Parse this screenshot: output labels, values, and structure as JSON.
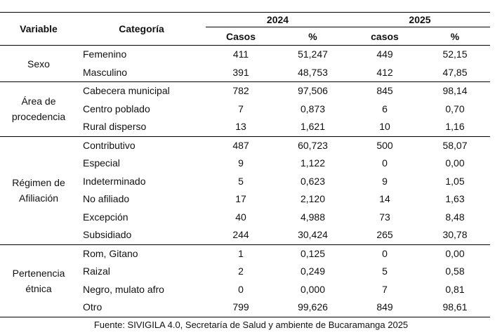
{
  "header": {
    "variable": "Variable",
    "categoria": "Categoría",
    "year1": "2024",
    "year2": "2025",
    "casos1": "Casos",
    "pct1": "%",
    "casos2": "casos",
    "pct2": "%"
  },
  "groups": [
    {
      "variable": [
        "Sexo"
      ],
      "rows": [
        [
          "Femenino",
          "411",
          "51,247",
          "449",
          "52,15"
        ],
        [
          "Masculino",
          "391",
          "48,753",
          "412",
          "47,85"
        ]
      ]
    },
    {
      "variable": [
        "Área de",
        "procedencia"
      ],
      "rows": [
        [
          "Cabecera municipal",
          "782",
          "97,506",
          "845",
          "98,14"
        ],
        [
          "Centro poblado",
          "7",
          "0,873",
          "6",
          "0,70"
        ],
        [
          "Rural disperso",
          "13",
          "1,621",
          "10",
          "1,16"
        ]
      ]
    },
    {
      "variable": [
        "Régimen de",
        "Afiliación"
      ],
      "rows": [
        [
          "Contributivo",
          "487",
          "60,723",
          "500",
          "58,07"
        ],
        [
          "Especial",
          "9",
          "1,122",
          "0",
          "0,00"
        ],
        [
          "Indeterminado",
          "5",
          "0,623",
          "9",
          "1,05"
        ],
        [
          "No afiliado",
          "17",
          "2,120",
          "14",
          "1,63"
        ],
        [
          "Excepción",
          "40",
          "4,988",
          "73",
          "8,48"
        ],
        [
          "Subsidiado",
          "244",
          "30,424",
          "265",
          "30,78"
        ]
      ]
    },
    {
      "variable": [
        "Pertenencia",
        "étnica"
      ],
      "rows": [
        [
          "Rom, Gitano",
          "1",
          "0,125",
          "0",
          "0,00"
        ],
        [
          "Raizal",
          "2",
          "0,249",
          "5",
          "0,58"
        ],
        [
          "Negro, mulato afro",
          "0",
          "0,000",
          "7",
          "0,81"
        ],
        [
          "Otro",
          "799",
          "99,626",
          "849",
          "98,61"
        ]
      ]
    }
  ],
  "source": "Fuente: SIVIGILA 4.0, Secretaría de Salud y ambiente de Bucaramanga 2025"
}
